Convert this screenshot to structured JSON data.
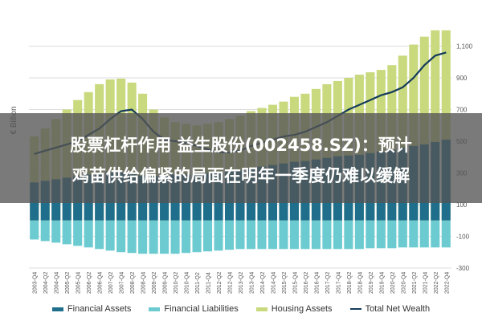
{
  "headline": {
    "line1": "股票杠杆作用 益生股份(002458.SZ)：预计",
    "line2": "鸡苗供给偏紧的局面在明年一季度仍难以缓解"
  },
  "chart_data": {
    "type": "bar",
    "ylabel": "€ Billion",
    "ylim": [
      -300,
      1300
    ],
    "yticks": [
      -300,
      -100,
      100,
      300,
      500,
      700,
      900,
      1100
    ],
    "ytick_labels": [
      "-300",
      "-100",
      "100",
      "300",
      "500",
      "700",
      "900",
      "1,100"
    ],
    "grid": true,
    "legend_placement": "bottom",
    "categories": [
      "2003-Q4",
      "2004-Q2",
      "2004-Q4",
      "2005-Q2",
      "2005-Q4",
      "2006-Q2",
      "2006-Q4",
      "2007-Q2",
      "2007-Q4",
      "2008-Q2",
      "2008-Q4",
      "2009-Q2",
      "2009-Q4",
      "2010-Q2",
      "2010-Q4",
      "2011-Q2",
      "2011-Q4",
      "2012-Q2",
      "2012-Q4",
      "2013-Q2",
      "2013-Q4",
      "2014-Q2",
      "2014-Q4",
      "2015-Q2",
      "2015-Q4",
      "2016-Q2",
      "2016-Q4",
      "2017-Q2",
      "2017-Q4",
      "2018-Q2",
      "2018-Q4",
      "2019-Q2",
      "2019-Q4",
      "2020-Q2",
      "2020-Q4",
      "2021-Q2",
      "2021-Q4",
      "2022-Q2",
      "2022-Q4"
    ],
    "series": [
      {
        "name": "Financial Assets",
        "color": "#1f6e8c",
        "kind": "bar-positive",
        "values": [
          240,
          250,
          260,
          270,
          280,
          290,
          300,
          305,
          305,
          300,
          285,
          280,
          285,
          290,
          290,
          295,
          300,
          305,
          310,
          320,
          330,
          340,
          350,
          360,
          370,
          375,
          385,
          395,
          405,
          410,
          415,
          425,
          435,
          445,
          460,
          470,
          480,
          495,
          510
        ]
      },
      {
        "name": "Financial Liabilities",
        "color": "#6ccbd0",
        "kind": "bar-negative",
        "values": [
          -120,
          -130,
          -140,
          -150,
          -160,
          -170,
          -180,
          -190,
          -200,
          -205,
          -210,
          -210,
          -210,
          -210,
          -205,
          -200,
          -195,
          -190,
          -185,
          -180,
          -180,
          -180,
          -180,
          -180,
          -180,
          -180,
          -180,
          -180,
          -180,
          -180,
          -180,
          -175,
          -175,
          -175,
          -170,
          -170,
          -170,
          -170,
          -170
        ]
      },
      {
        "name": "Housing Assets",
        "color": "#c9d97e",
        "kind": "bar-positive",
        "values": [
          530,
          580,
          640,
          700,
          760,
          810,
          860,
          890,
          895,
          870,
          800,
          700,
          650,
          620,
          610,
          600,
          610,
          620,
          640,
          660,
          690,
          710,
          730,
          750,
          780,
          800,
          830,
          860,
          880,
          900,
          920,
          935,
          950,
          980,
          1040,
          1110,
          1160,
          1200,
          1200
        ]
      },
      {
        "name": "Total Net Wealth",
        "color": "#143c5a",
        "kind": "line",
        "values": [
          420,
          440,
          460,
          480,
          500,
          540,
          580,
          640,
          690,
          700,
          640,
          560,
          510,
          500,
          490,
          470,
          450,
          430,
          430,
          440,
          470,
          490,
          510,
          530,
          540,
          560,
          590,
          620,
          660,
          700,
          730,
          760,
          790,
          810,
          840,
          900,
          980,
          1040,
          1060
        ]
      }
    ]
  }
}
